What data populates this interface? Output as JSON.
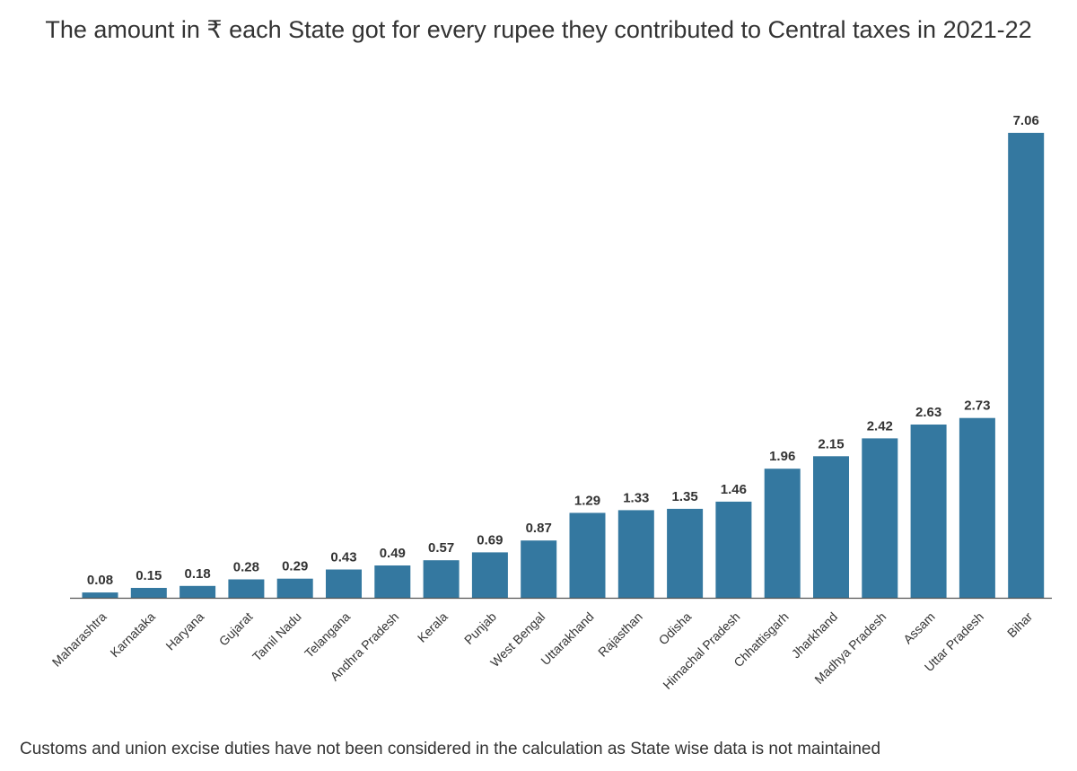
{
  "title": "The amount in ₹ each State got for every rupee they contributed to Central taxes in 2021-22",
  "footnote": "Customs and union excise duties have not been considered in the calculation as State wise data is not maintained",
  "colors": {
    "bar": "#3478a0",
    "text": "#333333",
    "baseline": "#555555"
  },
  "chart_data": {
    "type": "bar",
    "title": "The amount in ₹ each State got for every rupee they contributed to Central taxes in 2021-22",
    "xlabel": "",
    "ylabel": "",
    "ylim": [
      0,
      7.06
    ],
    "grid": false,
    "categories": [
      "Maharashtra",
      "Karnataka",
      "Haryana",
      "Gujarat",
      "Tamil Nadu",
      "Telangana",
      "Andhra Pradesh",
      "Kerala",
      "Punjab",
      "West Bengal",
      "Uttarakhand",
      "Rajasthan",
      "Odisha",
      "Himachal Pradesh",
      "Chhattisgarh",
      "Jharkhand",
      "Madhya Pradesh",
      "Assam",
      "Uttar Pradesh",
      "Bihar"
    ],
    "values": [
      0.08,
      0.15,
      0.18,
      0.28,
      0.29,
      0.43,
      0.49,
      0.57,
      0.69,
      0.87,
      1.29,
      1.33,
      1.35,
      1.46,
      1.96,
      2.15,
      2.42,
      2.63,
      2.73,
      7.06
    ],
    "value_labels": [
      "0.08",
      "0.15",
      "0.18",
      "0.28",
      "0.29",
      "0.43",
      "0.49",
      "0.57",
      "0.69",
      "0.87",
      "1.29",
      "1.33",
      "1.35",
      "1.46",
      "1.96",
      "2.15",
      "2.42",
      "2.63",
      "2.73",
      "7.06"
    ]
  }
}
